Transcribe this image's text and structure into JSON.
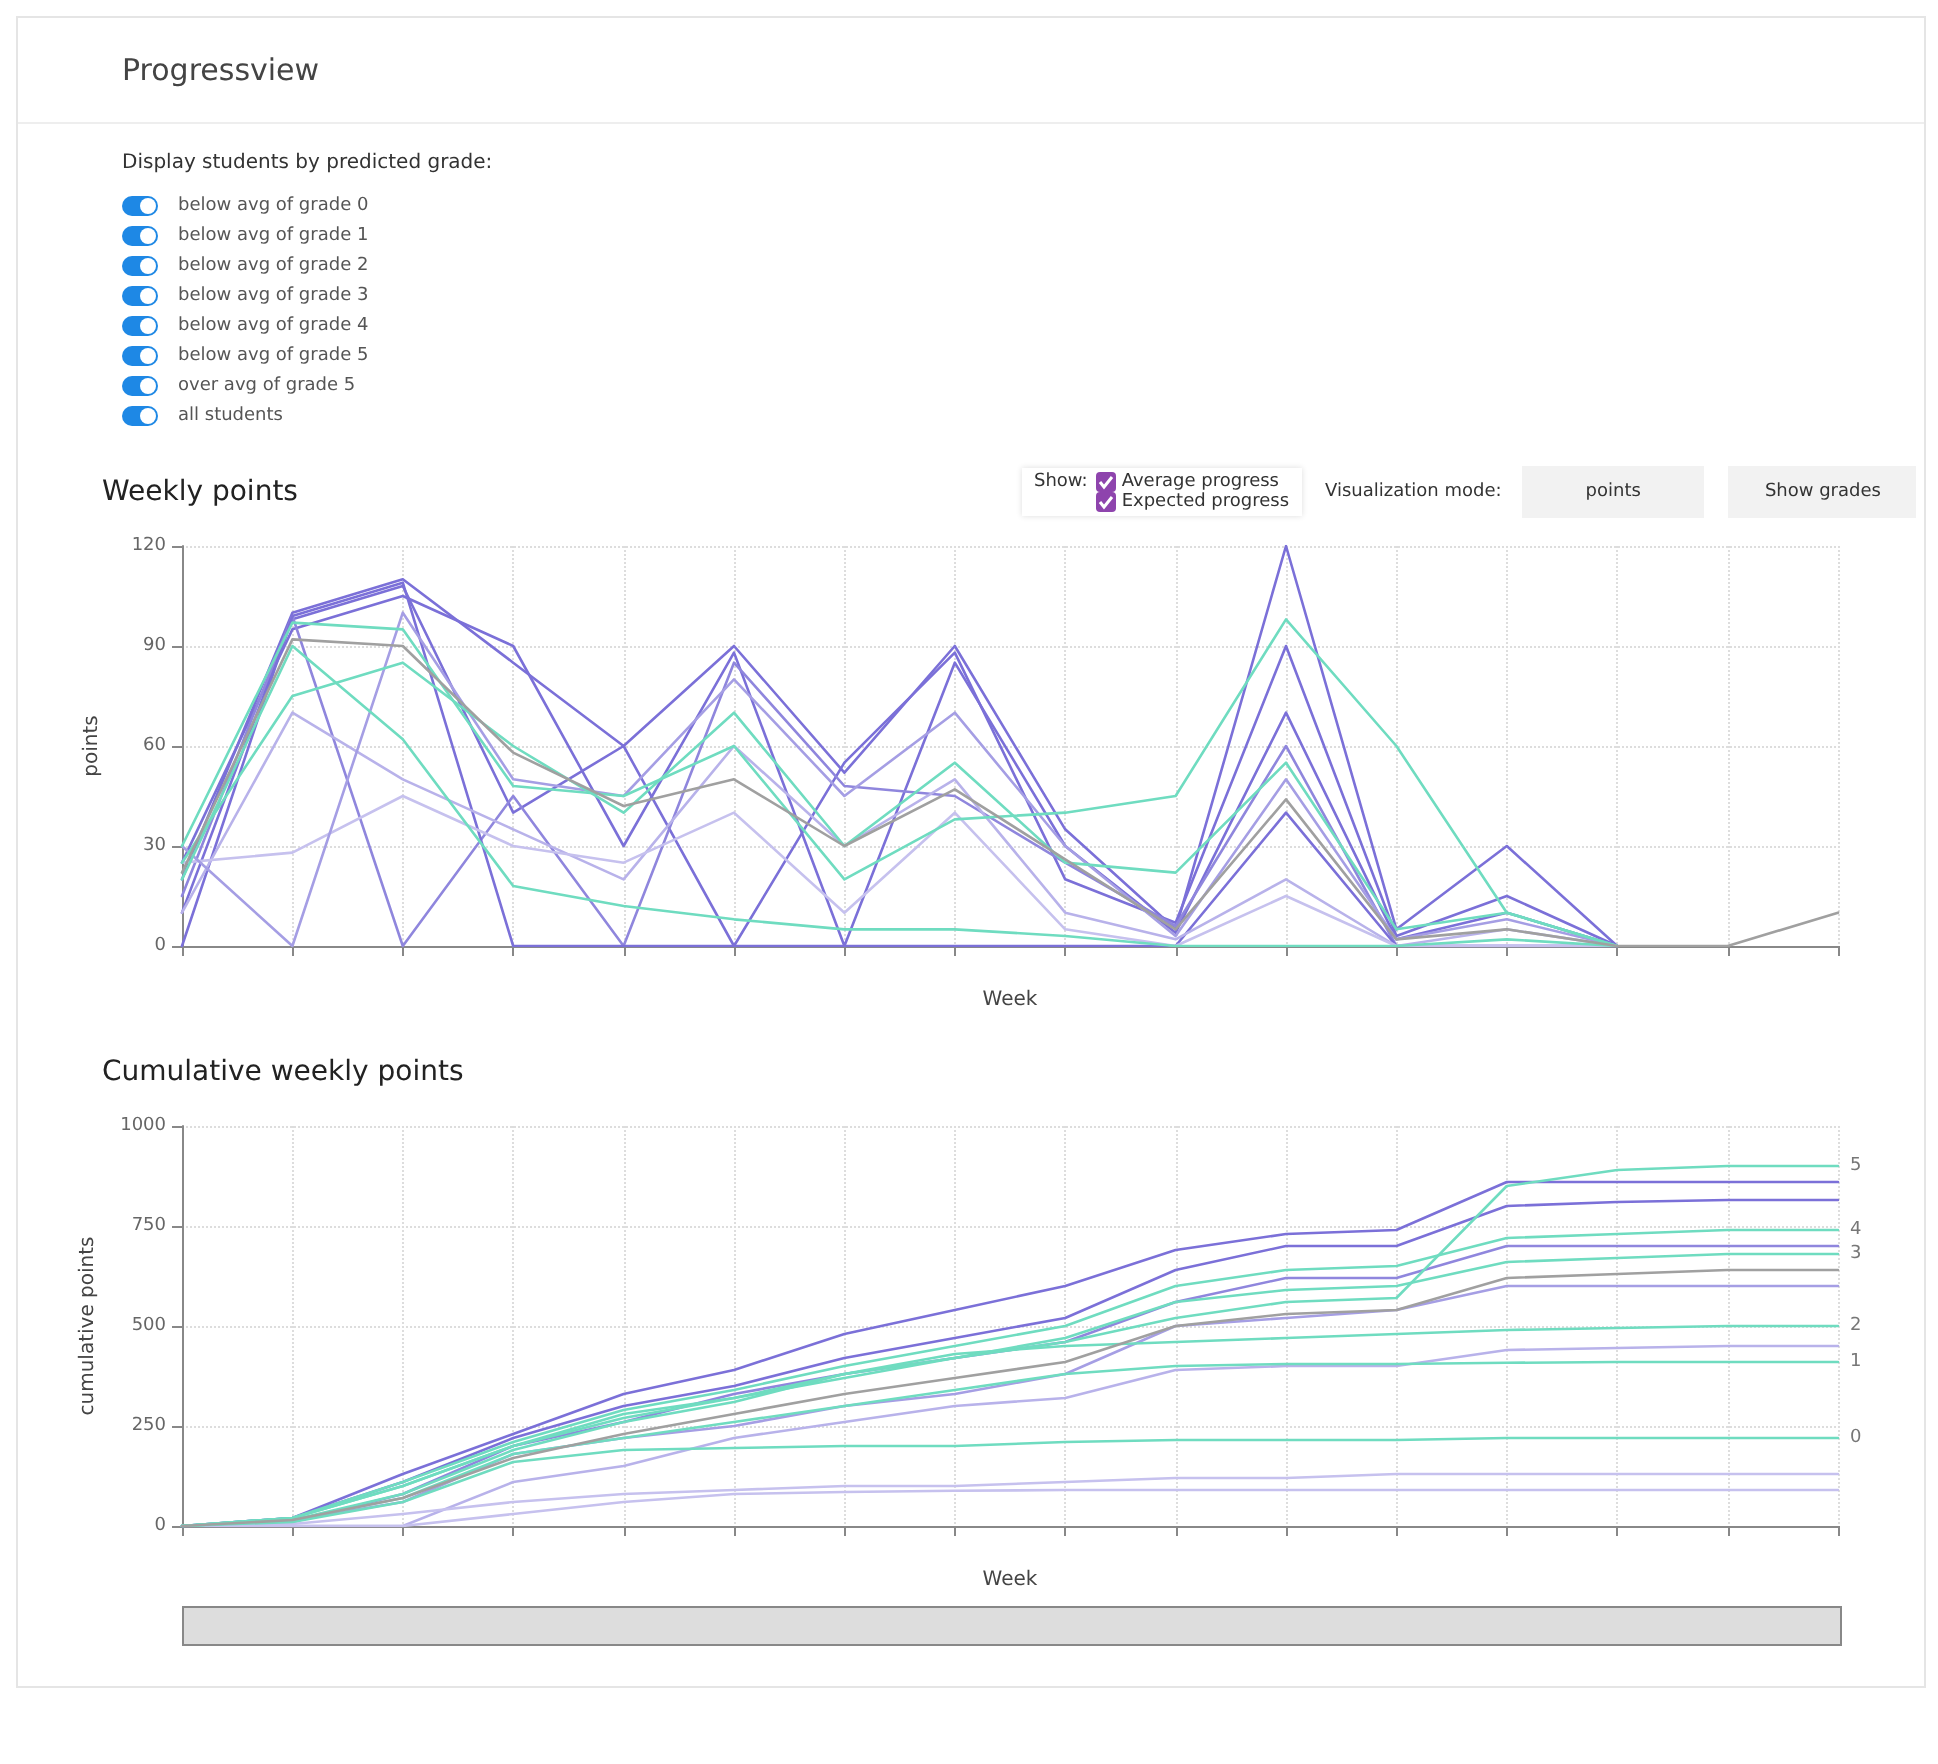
{
  "chart_data": [
    {
      "type": "other",
      "title": "Progressview",
      "annotations": [
        "Display students by predicted grade:",
        "below avg of grade 0",
        "below avg of grade 1",
        "below avg of grade 2",
        "below avg of grade 3",
        "below avg of grade 4",
        "below avg of grade 5",
        "over avg of grade 5",
        "all students"
      ]
    },
    {
      "type": "line",
      "title": "Weekly points",
      "xlabel": "Week",
      "ylabel": "points",
      "annotations": [
        "Show:",
        "Average progress",
        "Expected progress",
        "Visualization mode:",
        "points",
        "Show grades"
      ],
      "categories": [
        null,
        null,
        null,
        null,
        null,
        null,
        null,
        null,
        null,
        null,
        null,
        null,
        null,
        null,
        null,
        null
      ],
      "ylim": [
        0,
        120
      ],
      "yticks": [
        0,
        30,
        60,
        90,
        120
      ],
      "grid": true,
      "marker": "none",
      "line_style": "solid",
      "series": [
        {
          "color": "#7b70d8",
          "values": [
            20,
            100,
            110,
            85,
            60,
            90,
            52,
            90,
            35,
            5,
            120,
            5,
            30,
            0,
            null,
            null
          ]
        },
        {
          "color": "#7b70d8",
          "values": [
            10,
            98,
            108,
            40,
            60,
            0,
            55,
            88,
            20,
            7,
            90,
            3,
            15,
            0,
            null,
            null
          ]
        },
        {
          "color": "#7b70d8",
          "values": [
            25,
            95,
            105,
            90,
            30,
            88,
            0,
            85,
            30,
            4,
            70,
            2,
            10,
            0,
            null,
            null
          ]
        },
        {
          "color": "#8f86dd",
          "values": [
            15,
            99,
            0,
            45,
            0,
            85,
            48,
            45,
            25,
            6,
            60,
            0,
            0,
            0,
            null,
            null
          ]
        },
        {
          "color": "#7b70d8",
          "values": [
            0,
            99,
            109,
            0,
            0,
            0,
            0,
            0,
            0,
            0,
            40,
            0,
            0,
            0,
            null,
            null
          ]
        },
        {
          "color": "#b8b2ea",
          "values": [
            10,
            70,
            50,
            35,
            20,
            60,
            30,
            50,
            10,
            2,
            20,
            0,
            5,
            0,
            null,
            null
          ]
        },
        {
          "color": "#c6c1ee",
          "values": [
            25,
            28,
            45,
            30,
            25,
            40,
            10,
            40,
            5,
            0,
            15,
            0,
            0,
            0,
            null,
            null
          ]
        },
        {
          "color": "#a59eE4",
          "values": [
            30,
            0,
            100,
            50,
            45,
            80,
            45,
            70,
            30,
            3,
            50,
            2,
            8,
            0,
            null,
            null
          ]
        },
        {
          "color": "#6fdcc0",
          "values": [
            30,
            97,
            95,
            48,
            45,
            60,
            20,
            38,
            40,
            45,
            98,
            60,
            10,
            0,
            null,
            null
          ]
        },
        {
          "color": "#6fdcc0",
          "values": [
            20,
            90,
            62,
            18,
            12,
            8,
            5,
            5,
            3,
            0,
            0,
            0,
            2,
            0,
            null,
            null
          ]
        },
        {
          "color": "#6fdcc0",
          "values": [
            25,
            75,
            85,
            60,
            40,
            70,
            30,
            55,
            25,
            22,
            55,
            5,
            10,
            0,
            null,
            null
          ]
        },
        {
          "color": "#a0a0a0",
          "values": [
            22,
            92,
            90,
            58,
            42,
            50,
            30,
            47,
            26,
            5,
            44,
            2,
            5,
            0,
            0,
            10
          ]
        }
      ]
    },
    {
      "type": "line",
      "title": "Cumulative weekly points",
      "xlabel": "Week",
      "ylabel": "cumulative points",
      "categories": [
        null,
        null,
        null,
        null,
        null,
        null,
        null,
        null,
        null,
        null,
        null,
        null,
        null,
        null,
        null,
        null
      ],
      "ylim": [
        0,
        1000
      ],
      "yticks": [
        0,
        250,
        500,
        750,
        1000
      ],
      "grid": true,
      "marker": "none",
      "line_style": "solid",
      "series": [
        {
          "color": "#7b70d8",
          "values": [
            0,
            20,
            130,
            230,
            330,
            390,
            480,
            540,
            600,
            690,
            730,
            740,
            860,
            860,
            860,
            860
          ]
        },
        {
          "color": "#7b70d8",
          "values": [
            0,
            20,
            110,
            220,
            300,
            350,
            420,
            470,
            520,
            640,
            700,
            700,
            800,
            810,
            815,
            815
          ]
        },
        {
          "color": "#8f86dd",
          "values": [
            0,
            10,
            80,
            200,
            260,
            330,
            380,
            420,
            460,
            560,
            620,
            620,
            700,
            700,
            700,
            700
          ]
        },
        {
          "color": "#a59ee4",
          "values": [
            0,
            15,
            60,
            180,
            220,
            250,
            300,
            330,
            380,
            500,
            520,
            540,
            600,
            600,
            600,
            600
          ]
        },
        {
          "color": "#b8b2ea",
          "values": [
            0,
            0,
            0,
            110,
            150,
            220,
            260,
            300,
            320,
            390,
            400,
            400,
            440,
            445,
            450,
            450
          ]
        },
        {
          "color": "#c6c1ee",
          "values": [
            0,
            5,
            30,
            60,
            80,
            90,
            100,
            100,
            110,
            120,
            120,
            130,
            130,
            130,
            130,
            130
          ]
        },
        {
          "color": "#c6c1ee",
          "values": [
            0,
            0,
            0,
            30,
            60,
            80,
            85,
            88,
            90,
            90,
            90,
            90,
            90,
            90,
            90,
            90
          ]
        },
        {
          "name": "5",
          "color": "#6fdcc0",
          "values": [
            0,
            20,
            100,
            200,
            280,
            320,
            380,
            420,
            460,
            520,
            560,
            570,
            850,
            890,
            900,
            900
          ]
        },
        {
          "name": "4",
          "color": "#6fdcc0",
          "values": [
            0,
            20,
            110,
            210,
            290,
            340,
            400,
            450,
            500,
            600,
            640,
            650,
            720,
            730,
            740,
            740
          ]
        },
        {
          "name": "3",
          "color": "#6fdcc0",
          "values": [
            0,
            20,
            100,
            200,
            270,
            320,
            370,
            420,
            470,
            560,
            590,
            600,
            660,
            670,
            680,
            680
          ]
        },
        {
          "name": "2",
          "color": "#6fdcc0",
          "values": [
            0,
            15,
            80,
            190,
            260,
            310,
            380,
            430,
            450,
            460,
            470,
            480,
            490,
            495,
            500,
            500
          ]
        },
        {
          "name": "1",
          "color": "#6fdcc0",
          "values": [
            0,
            15,
            70,
            180,
            220,
            260,
            300,
            340,
            380,
            400,
            405,
            405,
            408,
            410,
            410,
            410
          ]
        },
        {
          "name": "0",
          "color": "#6fdcc0",
          "values": [
            0,
            10,
            60,
            160,
            190,
            195,
            200,
            200,
            210,
            215,
            215,
            215,
            220,
            220,
            220,
            220
          ]
        },
        {
          "color": "#a0a0a0",
          "values": [
            0,
            15,
            70,
            170,
            230,
            280,
            330,
            370,
            410,
            500,
            530,
            540,
            620,
            630,
            640,
            640
          ]
        }
      ]
    }
  ]
}
